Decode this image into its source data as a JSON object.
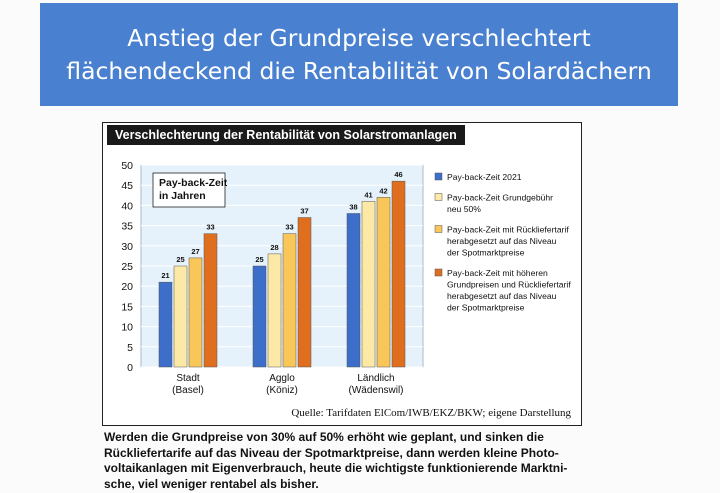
{
  "banner": {
    "title_line1": "Anstieg der Grundpreise verschlechtert",
    "title_line2": "flächendeckend die Rentabilität von Solardächern"
  },
  "figure": {
    "title": "Verschlechterung der Rentabilität von Solarstromanlagen",
    "source": "Quelle: Tarifdaten ElCom/IWB/EKZ/BKW; eigene Darstellung"
  },
  "chart_data": {
    "type": "bar",
    "title": "Pay-back-Zeit in Jahren",
    "title_lines": [
      "Pay-back-Zeit",
      "in Jahren"
    ],
    "categories": [
      "Stadt (Basel)",
      "Agglo (Köniz)",
      "Ländlich (Wädenswil)"
    ],
    "category_lines": [
      [
        "Stadt",
        "(Basel)"
      ],
      [
        "Agglo",
        "(Köniz)"
      ],
      [
        "Ländlich",
        "(Wädenswil)"
      ]
    ],
    "series": [
      {
        "name": "Pay-back-Zeit 2021",
        "name_lines": [
          "Pay-back-Zeit 2021"
        ],
        "values": [
          21,
          25,
          38
        ],
        "color": "#3d6ec9"
      },
      {
        "name": "Pay-back-Zeit Grundgebühr neu 50%",
        "name_lines": [
          "Pay-back-Zeit Grundgebühr",
          "neu 50%"
        ],
        "values": [
          25,
          28,
          41
        ],
        "color": "#fde9a6"
      },
      {
        "name": "Pay-back-Zeit mit Rückliefertarif herabgesetzt auf das Niveau der Spotmarktpreise",
        "name_lines": [
          "Pay-back-Zeit mit Rückliefertarif",
          "herabgesetzt auf das Niveau",
          "der Spotmarktpreise"
        ],
        "values": [
          27,
          33,
          42
        ],
        "color": "#f9c65a"
      },
      {
        "name": "Pay-back-Zeit mit höheren Grundpreisen und Rückliefertarif herabgesetzt auf das Niveau der Spotmarktpreise",
        "name_lines": [
          "Pay-back-Zeit mit höheren",
          "Grundpreisen und Rückliefertarif",
          "herabgesetzt auf das Niveau",
          "der Spotmarktpreise"
        ],
        "values": [
          33,
          37,
          46
        ],
        "color": "#e06e1f"
      }
    ],
    "ylim": [
      0,
      50
    ],
    "yticks": [
      0,
      5,
      10,
      15,
      20,
      25,
      30,
      35,
      40,
      45,
      50
    ],
    "xlabel": "",
    "ylabel": "",
    "grid": true,
    "legend": "right"
  },
  "caption": {
    "line1": "Werden die Grundpreise von 30% auf 50% erhöht wie geplant, und sinken die",
    "line2": "Rückliefertarife auf das Niveau der Spotmarktpreise, dann  werden kleine Photo-",
    "line3": "voltaikanlagen mit Eigenverbrauch, heute die wichtigste funktionierende Marktni-",
    "line4": "sche, viel weniger rentabel als bisher."
  }
}
